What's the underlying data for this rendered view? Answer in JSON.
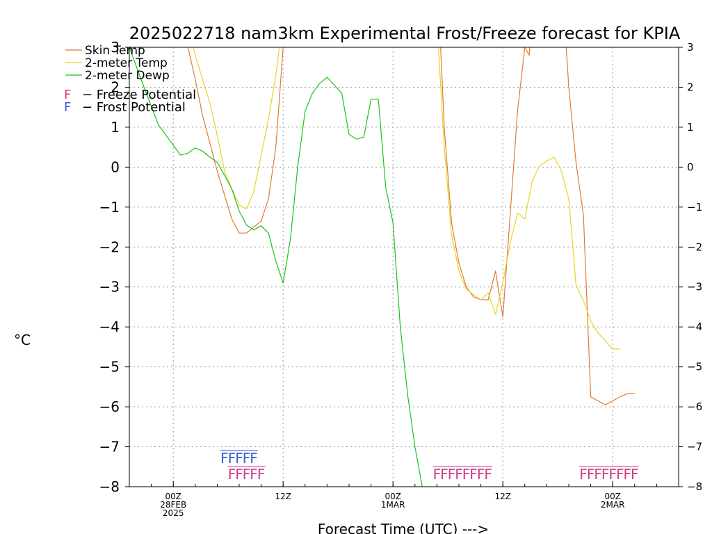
{
  "chart_data": {
    "type": "line",
    "title": "2025022718 nam3km Experimental Frost/Freeze forecast for KPIA",
    "xlabel": "Forecast Time (UTC) --->",
    "ylabel": "°C",
    "ylim": [
      -8,
      3
    ],
    "yticks": [
      "-8",
      "-7",
      "-6",
      "-5",
      "-4",
      "-3",
      "-2",
      "-1",
      "0",
      "1",
      "2",
      "3"
    ],
    "xlim": [
      -6,
      69
    ],
    "xticks": [
      {
        "x": 0,
        "line1": "00Z",
        "line2": "28FEB",
        "line3": "2025"
      },
      {
        "x": 15,
        "line1": "12Z",
        "line2": "",
        "line3": ""
      },
      {
        "x": 30,
        "line1": "00Z",
        "line2": "1MAR",
        "line3": ""
      },
      {
        "x": 45,
        "line1": "12Z",
        "line2": "",
        "line3": ""
      },
      {
        "x": 60,
        "line1": "00Z",
        "line2": "2MAR",
        "line3": ""
      }
    ],
    "grid": true,
    "legend_position": "top-left",
    "series": [
      {
        "name": "Skin Temp",
        "color": "#e07a2e",
        "points": [
          [
            1.5,
            3.5
          ],
          [
            2,
            3
          ],
          [
            3,
            2.2
          ],
          [
            4,
            1.3
          ],
          [
            5,
            0.6
          ],
          [
            6,
            -0.1
          ],
          [
            7,
            -0.7
          ],
          [
            8,
            -1.3
          ],
          [
            9,
            -1.65
          ],
          [
            10,
            -1.65
          ],
          [
            11,
            -1.5
          ],
          [
            12,
            -1.35
          ],
          [
            13,
            -0.8
          ],
          [
            14,
            0.5
          ],
          [
            15,
            3
          ],
          [
            15.5,
            4
          ],
          [
            36,
            4
          ],
          [
            36.5,
            3
          ],
          [
            37,
            1
          ],
          [
            38,
            -1.4
          ],
          [
            39,
            -2.4
          ],
          [
            40,
            -3.0
          ],
          [
            41,
            -3.25
          ],
          [
            42,
            -3.32
          ],
          [
            43,
            -3.32
          ],
          [
            44,
            -2.6
          ],
          [
            45,
            -3.75
          ],
          [
            46,
            -1.2
          ],
          [
            47,
            1.4
          ],
          [
            48,
            3
          ],
          [
            48.6,
            2.8
          ],
          [
            49,
            4
          ],
          [
            53.3,
            4
          ],
          [
            54,
            2
          ],
          [
            55,
            0.1
          ],
          [
            56,
            -1.2
          ],
          [
            57,
            -5.75
          ],
          [
            58,
            -5.85
          ],
          [
            59,
            -5.95
          ],
          [
            60,
            -5.85
          ],
          [
            61,
            -5.75
          ],
          [
            62,
            -5.67
          ],
          [
            63,
            -5.67
          ]
        ]
      },
      {
        "name": "2-meter Temp",
        "color": "#e8d320",
        "points": [
          [
            1.5,
            4
          ],
          [
            3,
            2.8
          ],
          [
            4,
            2.2
          ],
          [
            5,
            1.6
          ],
          [
            6,
            0.8
          ],
          [
            7,
            -0.1
          ],
          [
            8,
            -0.55
          ],
          [
            9,
            -0.95
          ],
          [
            10,
            -1.05
          ],
          [
            11,
            -0.6
          ],
          [
            12,
            0.3
          ],
          [
            13,
            1.2
          ],
          [
            14,
            2.3
          ],
          [
            14.5,
            3
          ],
          [
            15,
            4
          ],
          [
            36,
            4
          ],
          [
            36.2,
            3
          ],
          [
            37,
            0.5
          ],
          [
            38,
            -1.7
          ],
          [
            39,
            -2.6
          ],
          [
            40,
            -3.05
          ],
          [
            41,
            -3.2
          ],
          [
            42,
            -3.32
          ],
          [
            43,
            -3.15
          ],
          [
            44,
            -3.68
          ],
          [
            45,
            -2.9
          ],
          [
            46,
            -1.9
          ],
          [
            47,
            -1.15
          ],
          [
            48,
            -1.3
          ],
          [
            49,
            -0.35
          ],
          [
            50,
            0.03
          ],
          [
            51,
            0.15
          ],
          [
            52,
            0.25
          ],
          [
            53,
            -0.1
          ],
          [
            54,
            -0.8
          ],
          [
            55,
            -2.95
          ],
          [
            56,
            -3.35
          ],
          [
            57,
            -3.85
          ],
          [
            58,
            -4.15
          ],
          [
            59,
            -4.35
          ],
          [
            60,
            -4.55
          ],
          [
            61,
            -4.55
          ]
        ]
      },
      {
        "name": "2-meter Dewp",
        "color": "#18c418",
        "points": [
          [
            -6,
            3
          ],
          [
            -4,
            2
          ],
          [
            -2,
            1.05
          ],
          [
            0,
            0.55
          ],
          [
            1,
            0.3
          ],
          [
            2,
            0.35
          ],
          [
            3,
            0.48
          ],
          [
            4,
            0.4
          ],
          [
            5,
            0.25
          ],
          [
            6,
            0.12
          ],
          [
            7,
            -0.2
          ],
          [
            8,
            -0.55
          ],
          [
            9,
            -1.1
          ],
          [
            10,
            -1.45
          ],
          [
            11,
            -1.57
          ],
          [
            12,
            -1.47
          ],
          [
            13,
            -1.65
          ],
          [
            14,
            -2.35
          ],
          [
            15,
            -2.9
          ],
          [
            16,
            -1.8
          ],
          [
            17,
            0.03
          ],
          [
            18,
            1.4
          ],
          [
            19,
            1.85
          ],
          [
            20,
            2.1
          ],
          [
            21,
            2.25
          ],
          [
            22,
            2.05
          ],
          [
            23,
            1.85
          ],
          [
            24,
            0.82
          ],
          [
            25,
            0.7
          ],
          [
            26,
            0.75
          ],
          [
            27,
            1.7
          ],
          [
            28,
            1.7
          ],
          [
            29,
            -0.5
          ],
          [
            30,
            -1.4
          ],
          [
            31,
            -4.0
          ],
          [
            32,
            -5.7
          ],
          [
            33,
            -7.0
          ],
          [
            34,
            -8
          ]
        ]
      }
    ],
    "freeze_potential": {
      "label": "Freeze Potential",
      "color": "#d03a8a",
      "marks": [
        [
          8,
          9,
          10,
          11,
          12
        ],
        [
          36,
          37,
          38,
          39,
          40,
          41,
          42,
          43
        ],
        [
          56,
          57,
          58,
          59,
          60,
          61,
          62,
          63
        ]
      ]
    },
    "frost_potential": {
      "label": "Frost Potential",
      "color": "#3a5ad0",
      "marks": [
        [
          7,
          8,
          9,
          10,
          11
        ]
      ]
    }
  }
}
